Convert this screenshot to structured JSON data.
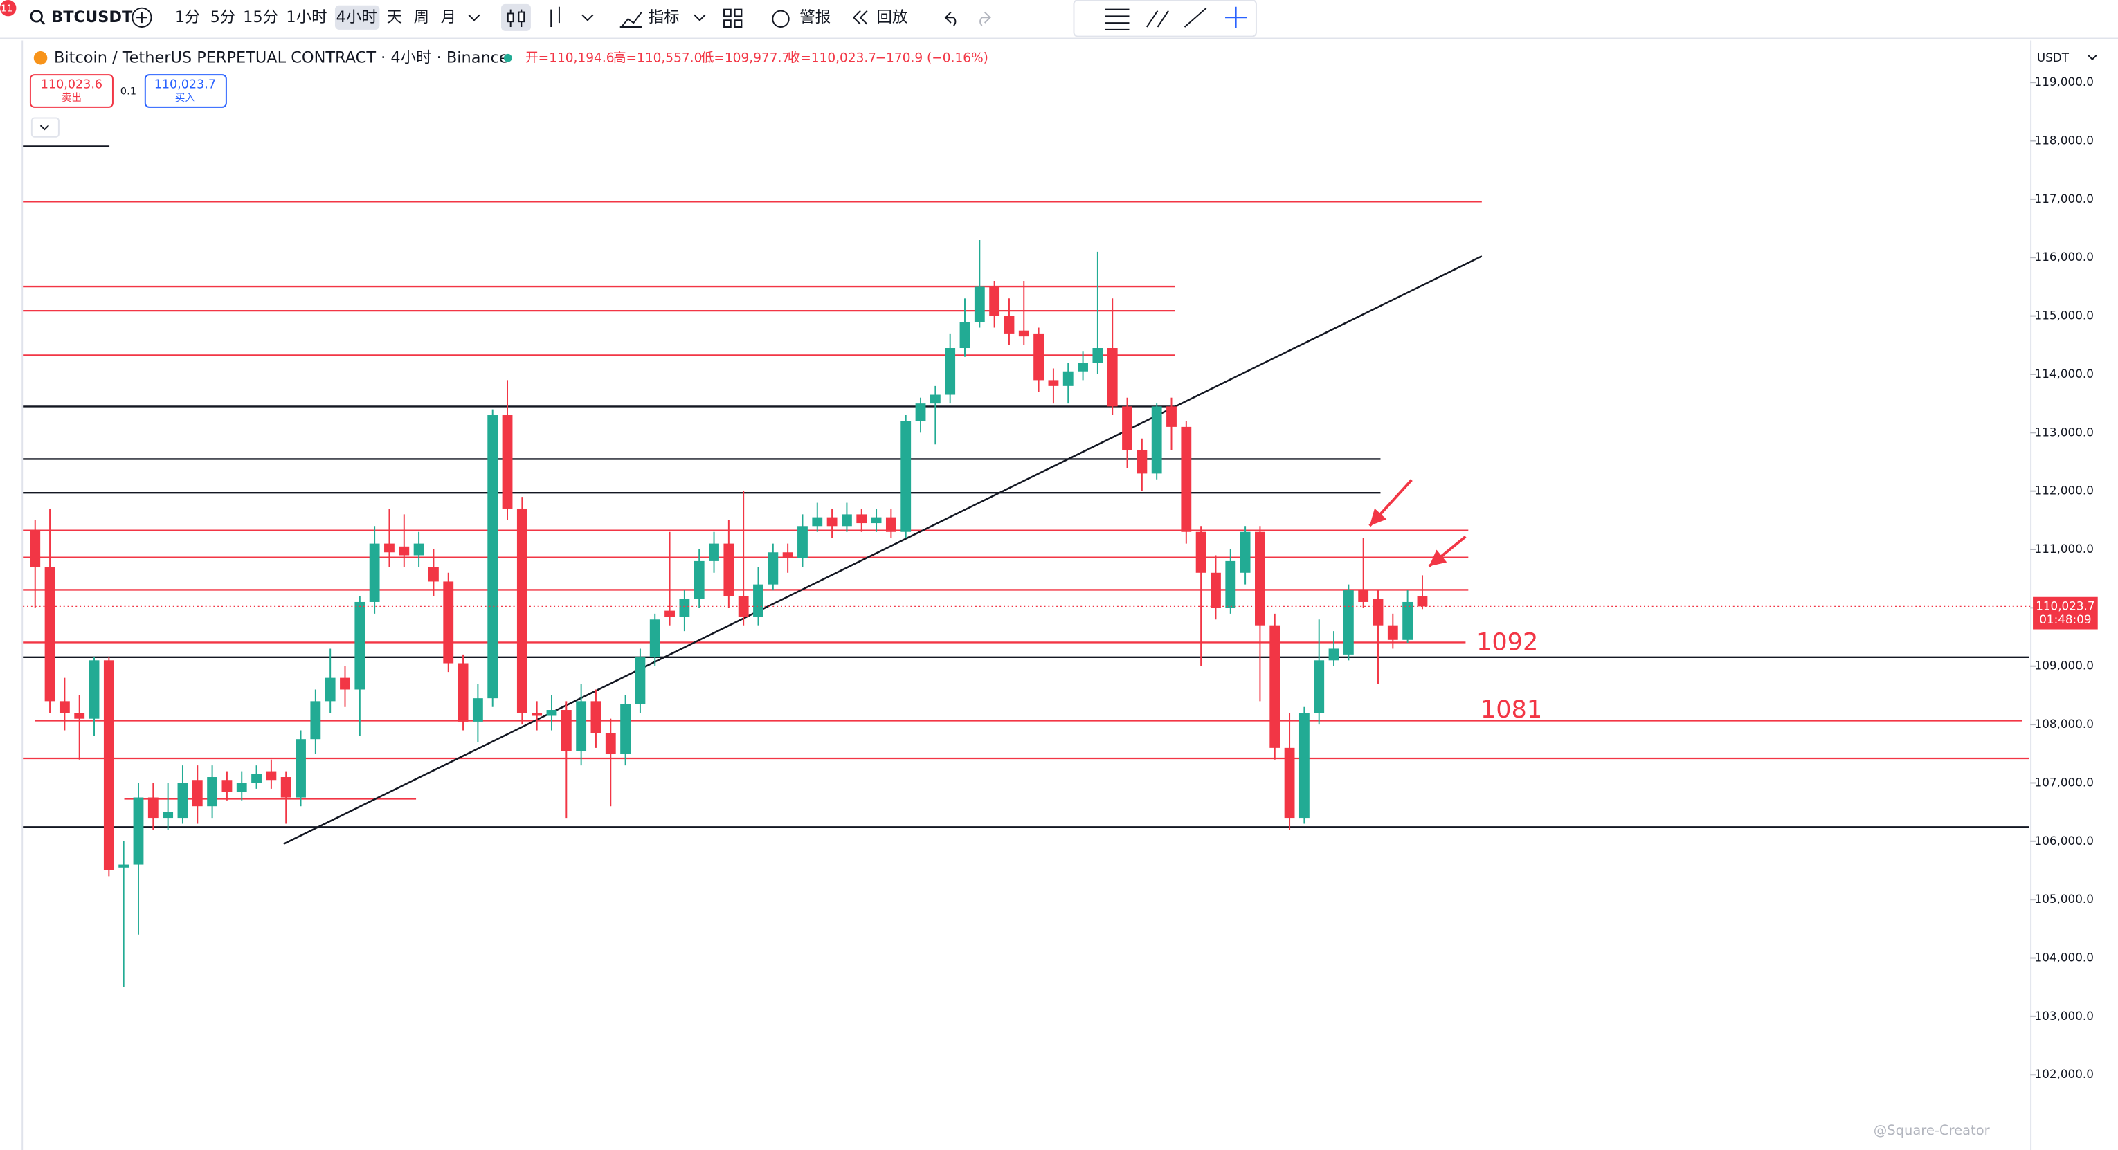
{
  "notification_count": 11,
  "toolbar": {
    "symbol": "BTCUSDT",
    "intervals": [
      "1分",
      "5分",
      "15分",
      "1小时",
      "4小时",
      "天",
      "周",
      "月"
    ],
    "indicators": "指标",
    "alerts": "警报",
    "replay": "回放"
  },
  "legend": {
    "title": "Bitcoin / TetherUS PERPETUAL CONTRACT · 4小时 · Binance",
    "open": "开=110,194.6",
    "high": "高=110,557.0",
    "low": "低=109,977.7",
    "close": "收=110,023.7",
    "change": "−170.9 (−0.16%)"
  },
  "order": {
    "sell_price": "110,023.6",
    "sell": "卖出",
    "quantity": "0.1",
    "buy_price": "110,023.7",
    "buy": "买入"
  },
  "watermark": "@Square-Creator",
  "chart_data": {
    "type": "candlestick",
    "currency": "USDT",
    "up_color": "#22ab94",
    "down_color": "#f23645",
    "open": [
      111330,
      110700,
      108400,
      108200,
      108100,
      109100,
      105550,
      105600,
      106750,
      106400,
      106400,
      107050,
      106600,
      107050,
      106850,
      107000,
      107200,
      107100,
      106750,
      107750,
      108400,
      108800,
      108600,
      110100,
      111100,
      111050,
      110900,
      110700,
      110450,
      109050,
      108050,
      108450,
      113300,
      111700,
      108200,
      108150,
      108250,
      107550,
      108400,
      107850,
      107500,
      108350,
      109150,
      109950,
      109850,
      110150,
      110800,
      111100,
      110200,
      109850,
      110400,
      110950,
      110850,
      111400,
      111550,
      111400,
      111600,
      111450,
      111550,
      111300,
      113200,
      113500,
      113650,
      114450,
      114900,
      115500,
      115000,
      114750,
      114700,
      113900,
      113800,
      114050,
      114200,
      114450,
      113450,
      112700,
      112300,
      113450,
      113100,
      111300,
      110600,
      110000,
      110600,
      111300,
      109700,
      107600,
      106400,
      108200,
      109100,
      109200,
      110300,
      110150,
      109700,
      109450,
      110194.6
    ],
    "high": [
      111500,
      111700,
      108800,
      108500,
      109150,
      109150,
      106000,
      107000,
      107000,
      107000,
      107300,
      107300,
      107300,
      107200,
      107200,
      107300,
      107400,
      107200,
      107900,
      108600,
      109300,
      109000,
      110200,
      111400,
      111700,
      111600,
      111300,
      111000,
      110600,
      109200,
      108700,
      113400,
      113900,
      111900,
      108400,
      108500,
      108400,
      108700,
      108600,
      108100,
      108500,
      109300,
      109900,
      111300,
      110300,
      111000,
      111300,
      111500,
      112000,
      110700,
      111100,
      111100,
      111600,
      111800,
      111700,
      111800,
      111700,
      111700,
      111700,
      113300,
      113600,
      113800,
      114700,
      115300,
      116300,
      115600,
      115300,
      115600,
      114800,
      114100,
      114200,
      114400,
      116100,
      115300,
      113600,
      112900,
      113500,
      113600,
      113200,
      111400,
      110900,
      111000,
      111400,
      111400,
      109900,
      108200,
      108300,
      109800,
      109600,
      110400,
      111200,
      110300,
      109900,
      110300,
      110557
    ],
    "low": [
      110000,
      108200,
      107900,
      107400,
      107800,
      105400,
      103500,
      104400,
      106200,
      106200,
      106300,
      106300,
      106400,
      106700,
      106700,
      106900,
      106900,
      106300,
      106600,
      107500,
      108200,
      108300,
      107800,
      109900,
      110700,
      110700,
      110700,
      110200,
      108900,
      107900,
      107700,
      108300,
      111500,
      108000,
      107900,
      107900,
      106400,
      107300,
      107600,
      106600,
      107300,
      108200,
      109000,
      109700,
      109600,
      110000,
      110600,
      110000,
      109700,
      109700,
      110300,
      110600,
      110700,
      111300,
      111200,
      111300,
      111300,
      111300,
      111200,
      111200,
      113000,
      112800,
      113500,
      114300,
      114800,
      114800,
      114500,
      114500,
      113700,
      113500,
      113500,
      113900,
      114000,
      113300,
      112400,
      112000,
      112200,
      112700,
      111100,
      109000,
      109800,
      109900,
      110400,
      108400,
      107400,
      106200,
      106300,
      108000,
      109000,
      109100,
      110000,
      108700,
      109300,
      109400,
      109977.7
    ],
    "close": [
      110700,
      108400,
      108200,
      108100,
      109100,
      105500,
      105600,
      106750,
      106400,
      106500,
      107000,
      106600,
      107100,
      106850,
      107000,
      107150,
      107050,
      106750,
      107750,
      108400,
      108800,
      108600,
      110100,
      111100,
      110950,
      110900,
      111100,
      110450,
      109050,
      108050,
      108450,
      113300,
      111700,
      108200,
      108150,
      108250,
      107550,
      108400,
      107850,
      107500,
      108350,
      109150,
      109800,
      109850,
      110150,
      110800,
      111100,
      110200,
      109850,
      110400,
      110950,
      110850,
      111400,
      111550,
      111400,
      111600,
      111450,
      111550,
      111300,
      113200,
      113500,
      113650,
      114450,
      114900,
      115500,
      115000,
      114700,
      114650,
      113900,
      113800,
      114050,
      114200,
      114450,
      113450,
      112700,
      112300,
      113450,
      113100,
      111300,
      110600,
      110000,
      110800,
      111300,
      109700,
      107600,
      106400,
      108200,
      109100,
      109300,
      110300,
      110100,
      109700,
      109450,
      110100,
      110023.7
    ],
    "ylim": [
      100780,
      119720
    ],
    "yticks": [
      {
        "value": 102000,
        "label": "102,000.0"
      },
      {
        "value": 103000,
        "label": "103,000.0"
      },
      {
        "value": 104000,
        "label": "104,000.0"
      },
      {
        "value": 105000,
        "label": "105,000.0"
      },
      {
        "value": 106000,
        "label": "106,000.0"
      },
      {
        "value": 107000,
        "label": "107,000.0"
      },
      {
        "value": 108000,
        "label": "108,000.0"
      },
      {
        "value": 109000,
        "label": "109,000.0"
      },
      {
        "value": 110000,
        "label": "110,000.0"
      },
      {
        "value": 111000,
        "label": "111,000.0"
      },
      {
        "value": 112000,
        "label": "112,000.0"
      },
      {
        "value": 113000,
        "label": "113,000.0"
      },
      {
        "value": 114000,
        "label": "114,000.0"
      },
      {
        "value": 115000,
        "label": "115,000.0"
      },
      {
        "value": 116000,
        "label": "116,000.0"
      },
      {
        "value": 117000,
        "label": "117,000.0"
      },
      {
        "value": 118000,
        "label": "118,000.0"
      },
      {
        "value": 119000,
        "label": "119,000.0"
      }
    ],
    "last_price_label": "110,023.7",
    "countdown": "01:48:09",
    "annotations": [
      "1092",
      "1081"
    ]
  }
}
